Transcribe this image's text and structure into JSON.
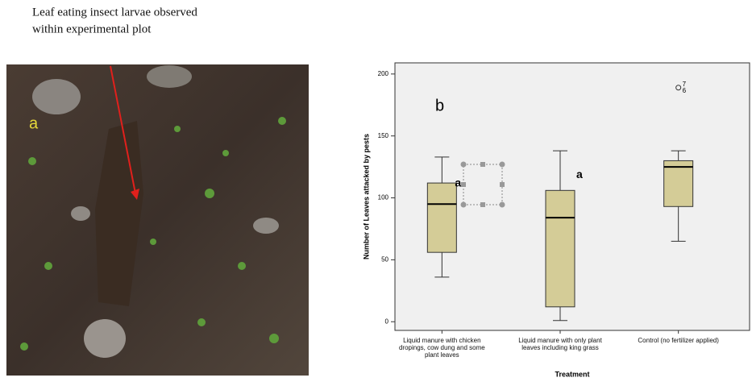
{
  "photo": {
    "caption": [
      "Leaf eating insect larvae observed",
      "within experimental plot"
    ],
    "label": "a"
  },
  "chart_data": {
    "type": "box",
    "annotation": "b",
    "y_label": "Number of Leaves attacked by pests",
    "x_label": "Treatment",
    "categories": [
      "Liquid manure with chicken dropings, cow dung and some plant leaves",
      "Liquid manure with only plant leaves including king grass",
      "Control (no fertilizer applied)"
    ],
    "boxes": [
      {
        "min": 36,
        "q1": 56,
        "median": 95,
        "q3": 112,
        "max": 133
      },
      {
        "min": 1,
        "q1": 12,
        "median": 84,
        "q3": 106,
        "max": 138
      },
      {
        "min": 65,
        "q1": 93,
        "median": 125,
        "q3": 130,
        "max": 138
      }
    ],
    "letters": [
      "a",
      "a",
      null
    ],
    "outliers": [
      {
        "category": 2,
        "value": 189,
        "labels": [
          "7",
          "6"
        ]
      }
    ],
    "color": "#d4cc97",
    "ylim": [
      -7,
      209
    ],
    "yticks": [
      0,
      50,
      100,
      150,
      200
    ]
  }
}
